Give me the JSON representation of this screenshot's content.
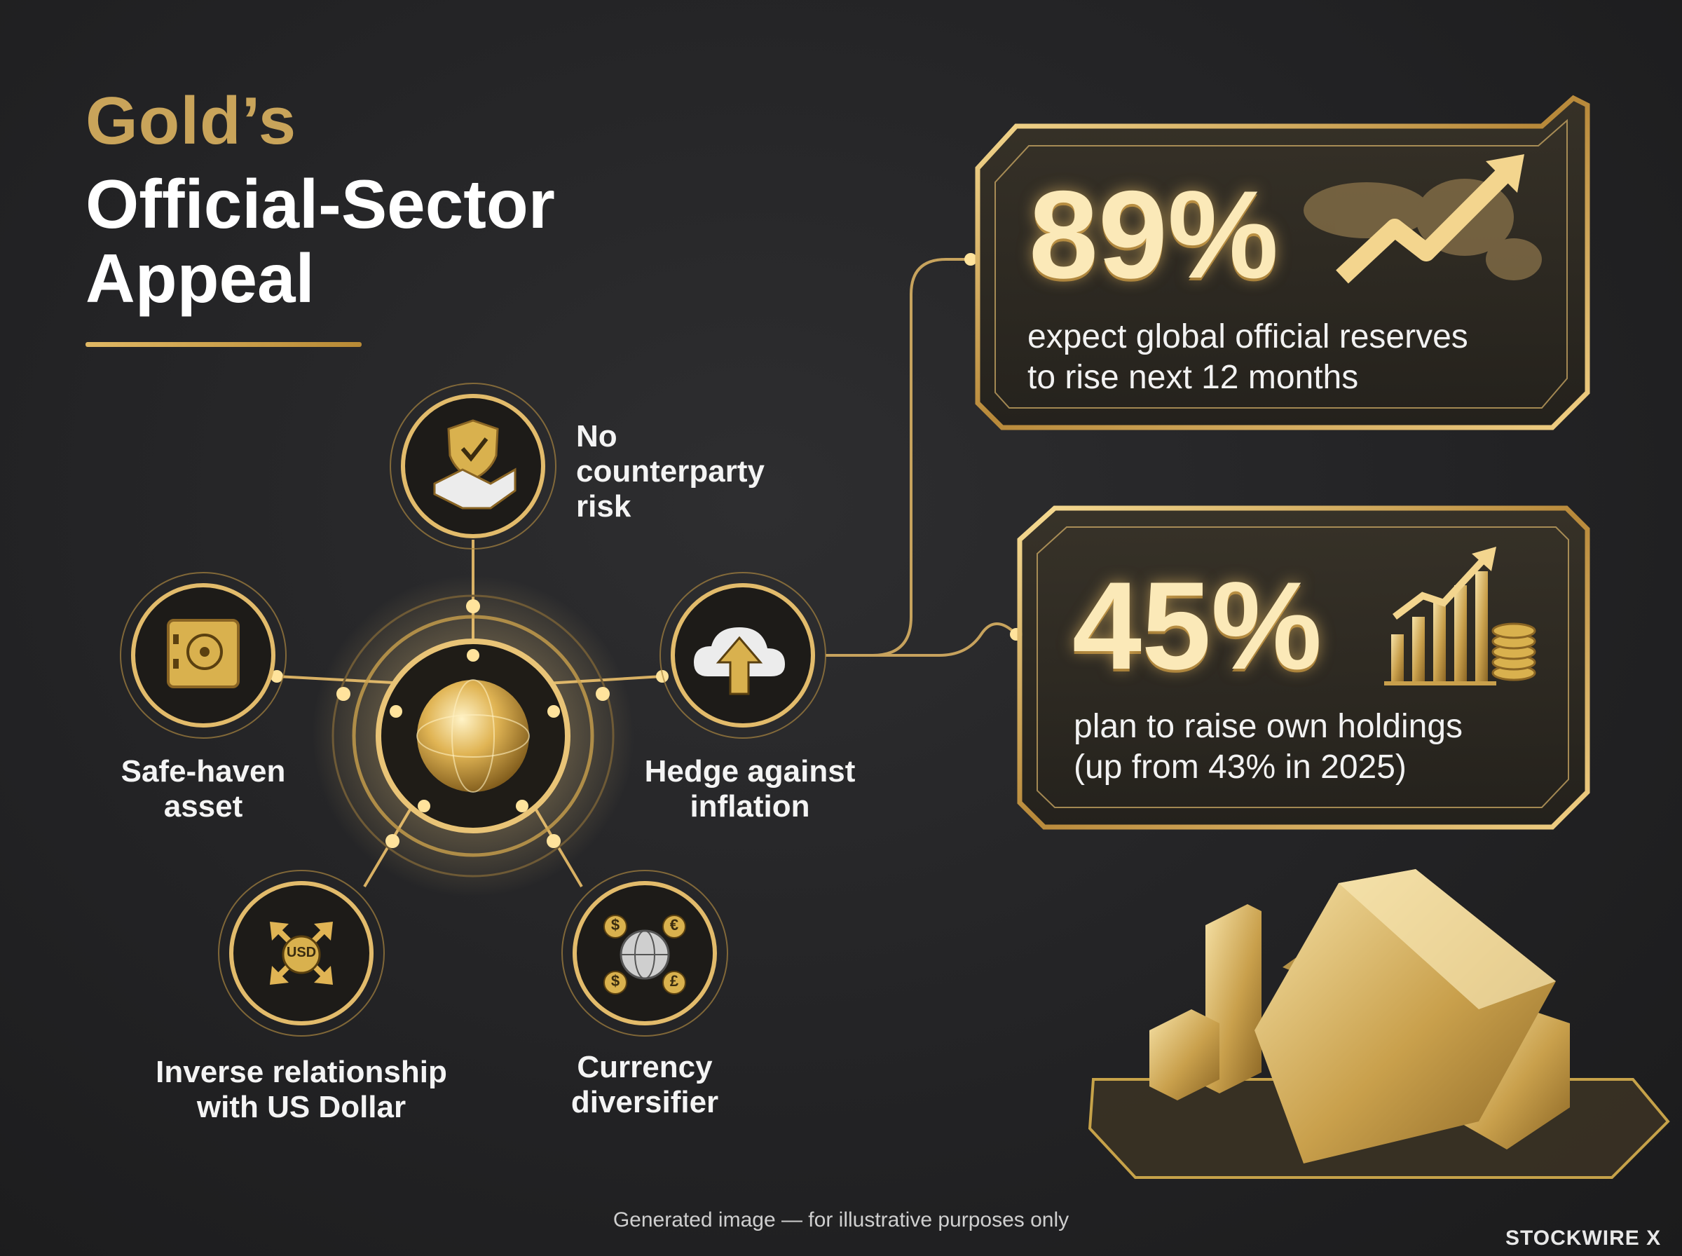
{
  "title": {
    "line1": "Gold’s",
    "line2a": "Official-Sector",
    "line2b": "Appeal"
  },
  "hub": {
    "nodes": [
      {
        "id": "no-counterparty",
        "label_lines": [
          "No",
          "counterparty",
          "risk"
        ],
        "icon": "shield-handshake-icon"
      },
      {
        "id": "safe-haven",
        "label_lines": [
          "Safe-haven",
          "asset"
        ],
        "icon": "vault-icon"
      },
      {
        "id": "hedge",
        "label_lines": [
          "Hedge against",
          "inflation"
        ],
        "icon": "cloud-upload-icon"
      },
      {
        "id": "inverse-usd",
        "label_lines": [
          "Inverse relationship",
          "with US Dollar"
        ],
        "icon": "usd-arrows-icon"
      },
      {
        "id": "currency",
        "label_lines": [
          "Currency",
          "diversifier"
        ],
        "icon": "globe-currency-icon"
      }
    ],
    "usd_badge": "USD",
    "currency_symbols": [
      "$",
      "€",
      "$",
      "£"
    ]
  },
  "stats": [
    {
      "value": "89%",
      "text_lines": [
        "expect global official reserves",
        "to rise next 12 months"
      ],
      "icon": "world-trend-arrow-icon"
    },
    {
      "value": "45%",
      "text_lines": [
        "plan to raise own holdings",
        "(up from 43% in 2025)"
      ],
      "icon": "bar-chart-coins-icon"
    }
  ],
  "footer": "Generated image — for illustrative purposes only",
  "brand": "STOCKWIRE X",
  "colors": {
    "background": "#232325",
    "gold": "#c9a45a",
    "gold_light": "#f3d58e",
    "text": "#ffffff"
  }
}
